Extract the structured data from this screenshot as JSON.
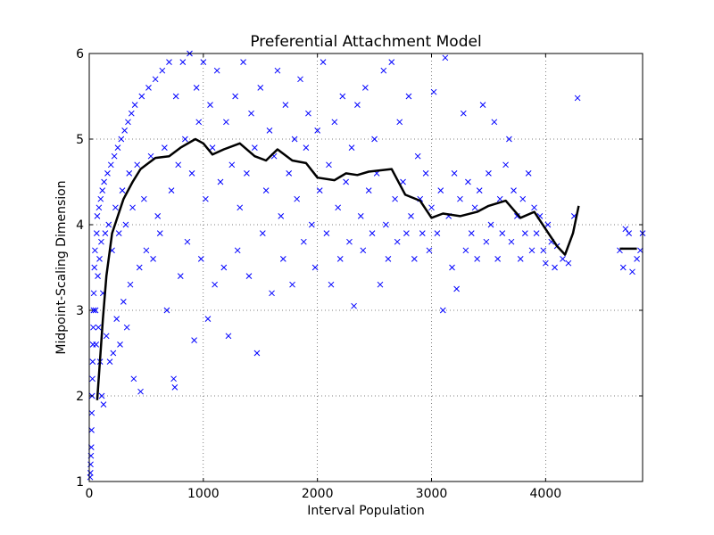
{
  "chart_data": {
    "type": "scatter",
    "title": "Preferential Attachment Model",
    "xlabel": "Interval Population",
    "ylabel": "Midpoint-Scaling Dimension",
    "xlim": [
      0,
      4850
    ],
    "ylim": [
      1,
      6
    ],
    "x_ticks": [
      0,
      1000,
      2000,
      3000,
      4000
    ],
    "x_tick_labels": [
      "0",
      "1000",
      "2000",
      "3000",
      "4000"
    ],
    "y_ticks": [
      1,
      2,
      3,
      4,
      5,
      6
    ],
    "y_tick_labels": [
      "1",
      "2",
      "3",
      "4",
      "5",
      "6"
    ],
    "grid": true,
    "grid_style": "dotted",
    "colors": {
      "scatter": "#0000ff",
      "line": "#000000",
      "frame": "#000000"
    },
    "series": [
      {
        "kind": "scatter",
        "marker": "x",
        "points": [
          [
            8,
            1.05
          ],
          [
            10,
            1.1
          ],
          [
            12,
            1.2
          ],
          [
            15,
            1.3
          ],
          [
            18,
            1.4
          ],
          [
            20,
            1.6
          ],
          [
            22,
            1.8
          ],
          [
            25,
            2.0
          ],
          [
            28,
            2.2
          ],
          [
            30,
            2.4
          ],
          [
            32,
            2.6
          ],
          [
            35,
            2.8
          ],
          [
            38,
            3.0
          ],
          [
            40,
            3.2
          ],
          [
            45,
            3.5
          ],
          [
            50,
            3.7
          ],
          [
            55,
            3.0
          ],
          [
            60,
            2.6
          ],
          [
            65,
            3.9
          ],
          [
            70,
            4.1
          ],
          [
            75,
            3.4
          ],
          [
            80,
            2.8
          ],
          [
            85,
            4.2
          ],
          [
            90,
            3.6
          ],
          [
            95,
            2.4
          ],
          [
            100,
            4.3
          ],
          [
            105,
            3.8
          ],
          [
            110,
            2.0
          ],
          [
            115,
            4.4
          ],
          [
            120,
            3.2
          ],
          [
            125,
            1.9
          ],
          [
            130,
            4.5
          ],
          [
            140,
            3.9
          ],
          [
            150,
            2.7
          ],
          [
            160,
            4.6
          ],
          [
            170,
            4.0
          ],
          [
            180,
            2.4
          ],
          [
            190,
            4.7
          ],
          [
            200,
            3.7
          ],
          [
            210,
            2.5
          ],
          [
            220,
            4.8
          ],
          [
            230,
            4.2
          ],
          [
            240,
            2.9
          ],
          [
            250,
            4.9
          ],
          [
            260,
            3.9
          ],
          [
            270,
            2.6
          ],
          [
            280,
            5.0
          ],
          [
            290,
            4.4
          ],
          [
            300,
            3.1
          ],
          [
            310,
            5.1
          ],
          [
            320,
            4.0
          ],
          [
            330,
            2.8
          ],
          [
            340,
            5.2
          ],
          [
            350,
            4.6
          ],
          [
            360,
            3.3
          ],
          [
            370,
            5.3
          ],
          [
            380,
            4.2
          ],
          [
            390,
            2.2
          ],
          [
            400,
            5.4
          ],
          [
            420,
            4.7
          ],
          [
            440,
            3.5
          ],
          [
            450,
            2.05
          ],
          [
            460,
            5.5
          ],
          [
            480,
            4.3
          ],
          [
            500,
            3.7
          ],
          [
            520,
            5.6
          ],
          [
            540,
            4.8
          ],
          [
            560,
            3.6
          ],
          [
            580,
            5.7
          ],
          [
            600,
            4.1
          ],
          [
            620,
            3.9
          ],
          [
            640,
            5.8
          ],
          [
            660,
            4.9
          ],
          [
            680,
            3.0
          ],
          [
            700,
            5.9
          ],
          [
            720,
            4.4
          ],
          [
            740,
            2.2
          ],
          [
            750,
            2.1
          ],
          [
            760,
            5.5
          ],
          [
            780,
            4.7
          ],
          [
            800,
            3.4
          ],
          [
            820,
            5.9
          ],
          [
            840,
            5.0
          ],
          [
            860,
            3.8
          ],
          [
            880,
            6.0
          ],
          [
            900,
            4.6
          ],
          [
            920,
            2.65
          ],
          [
            940,
            5.6
          ],
          [
            960,
            5.2
          ],
          [
            980,
            3.6
          ],
          [
            1000,
            5.9
          ],
          [
            1020,
            4.3
          ],
          [
            1040,
            2.9
          ],
          [
            1060,
            5.4
          ],
          [
            1080,
            4.9
          ],
          [
            1100,
            3.3
          ],
          [
            1120,
            5.8
          ],
          [
            1150,
            4.5
          ],
          [
            1180,
            3.5
          ],
          [
            1200,
            5.2
          ],
          [
            1220,
            2.7
          ],
          [
            1250,
            4.7
          ],
          [
            1280,
            5.5
          ],
          [
            1300,
            3.7
          ],
          [
            1320,
            4.2
          ],
          [
            1350,
            5.9
          ],
          [
            1380,
            4.6
          ],
          [
            1400,
            3.4
          ],
          [
            1420,
            5.3
          ],
          [
            1450,
            4.9
          ],
          [
            1470,
            2.5
          ],
          [
            1500,
            5.6
          ],
          [
            1520,
            3.9
          ],
          [
            1550,
            4.4
          ],
          [
            1580,
            5.1
          ],
          [
            1600,
            3.2
          ],
          [
            1620,
            4.8
          ],
          [
            1650,
            5.8
          ],
          [
            1680,
            4.1
          ],
          [
            1700,
            3.6
          ],
          [
            1720,
            5.4
          ],
          [
            1750,
            4.6
          ],
          [
            1780,
            3.3
          ],
          [
            1800,
            5.0
          ],
          [
            1820,
            4.3
          ],
          [
            1850,
            5.7
          ],
          [
            1880,
            3.8
          ],
          [
            1900,
            4.9
          ],
          [
            1920,
            5.3
          ],
          [
            1950,
            4.0
          ],
          [
            1980,
            3.5
          ],
          [
            2000,
            5.1
          ],
          [
            2020,
            4.4
          ],
          [
            2050,
            5.9
          ],
          [
            2080,
            3.9
          ],
          [
            2100,
            4.7
          ],
          [
            2120,
            3.3
          ],
          [
            2150,
            5.2
          ],
          [
            2180,
            4.2
          ],
          [
            2200,
            3.6
          ],
          [
            2220,
            5.5
          ],
          [
            2250,
            4.5
          ],
          [
            2280,
            3.8
          ],
          [
            2300,
            4.9
          ],
          [
            2320,
            3.05
          ],
          [
            2350,
            5.4
          ],
          [
            2380,
            4.1
          ],
          [
            2400,
            3.7
          ],
          [
            2420,
            5.6
          ],
          [
            2450,
            4.4
          ],
          [
            2480,
            3.9
          ],
          [
            2500,
            5.0
          ],
          [
            2520,
            4.6
          ],
          [
            2550,
            3.3
          ],
          [
            2580,
            5.8
          ],
          [
            2600,
            4.0
          ],
          [
            2620,
            3.6
          ],
          [
            2650,
            5.9
          ],
          [
            2680,
            4.3
          ],
          [
            2700,
            3.8
          ],
          [
            2720,
            5.2
          ],
          [
            2750,
            4.5
          ],
          [
            2780,
            3.9
          ],
          [
            2800,
            5.5
          ],
          [
            2820,
            4.1
          ],
          [
            2850,
            3.6
          ],
          [
            2880,
            4.8
          ],
          [
            2900,
            4.3
          ],
          [
            2920,
            3.9
          ],
          [
            2950,
            4.6
          ],
          [
            2980,
            3.7
          ],
          [
            3000,
            4.2
          ],
          [
            3020,
            5.55
          ],
          [
            3050,
            3.9
          ],
          [
            3080,
            4.4
          ],
          [
            3100,
            3.0
          ],
          [
            3120,
            5.95
          ],
          [
            3150,
            4.1
          ],
          [
            3180,
            3.5
          ],
          [
            3200,
            4.6
          ],
          [
            3220,
            3.25
          ],
          [
            3250,
            4.3
          ],
          [
            3280,
            5.3
          ],
          [
            3300,
            3.7
          ],
          [
            3320,
            4.5
          ],
          [
            3350,
            3.9
          ],
          [
            3380,
            4.2
          ],
          [
            3400,
            3.6
          ],
          [
            3420,
            4.4
          ],
          [
            3450,
            5.4
          ],
          [
            3480,
            3.8
          ],
          [
            3500,
            4.6
          ],
          [
            3520,
            4.0
          ],
          [
            3550,
            5.2
          ],
          [
            3580,
            3.6
          ],
          [
            3600,
            4.3
          ],
          [
            3620,
            3.9
          ],
          [
            3650,
            4.7
          ],
          [
            3680,
            5.0
          ],
          [
            3700,
            3.8
          ],
          [
            3720,
            4.4
          ],
          [
            3750,
            4.1
          ],
          [
            3780,
            3.6
          ],
          [
            3800,
            4.3
          ],
          [
            3820,
            3.9
          ],
          [
            3850,
            4.6
          ],
          [
            3880,
            3.7
          ],
          [
            3900,
            4.2
          ],
          [
            3920,
            3.9
          ],
          [
            3950,
            4.1
          ],
          [
            3980,
            3.7
          ],
          [
            4000,
            3.55
          ],
          [
            4020,
            4.0
          ],
          [
            4050,
            3.8
          ],
          [
            4080,
            3.5
          ],
          [
            4100,
            3.75
          ],
          [
            4150,
            3.6
          ],
          [
            4200,
            3.55
          ],
          [
            4250,
            4.1
          ],
          [
            4280,
            5.48
          ],
          [
            4650,
            3.7
          ],
          [
            4680,
            3.5
          ],
          [
            4700,
            3.95
          ],
          [
            4730,
            3.9
          ],
          [
            4760,
            3.45
          ],
          [
            4800,
            3.6
          ],
          [
            4830,
            3.7
          ],
          [
            4850,
            3.9
          ]
        ]
      },
      {
        "kind": "line",
        "segments": [
          [
            [
              70,
              1.95
            ],
            [
              120,
              2.9
            ],
            [
              150,
              3.4
            ],
            [
              200,
              3.9
            ],
            [
              250,
              4.1
            ],
            [
              300,
              4.3
            ],
            [
              380,
              4.5
            ],
            [
              450,
              4.65
            ],
            [
              500,
              4.7
            ],
            [
              580,
              4.78
            ],
            [
              700,
              4.8
            ],
            [
              800,
              4.9
            ],
            [
              930,
              5.0
            ],
            [
              1000,
              4.95
            ],
            [
              1080,
              4.82
            ],
            [
              1180,
              4.88
            ],
            [
              1320,
              4.95
            ],
            [
              1450,
              4.8
            ],
            [
              1550,
              4.75
            ],
            [
              1650,
              4.88
            ],
            [
              1780,
              4.75
            ],
            [
              1900,
              4.72
            ],
            [
              2000,
              4.55
            ],
            [
              2150,
              4.52
            ],
            [
              2250,
              4.6
            ],
            [
              2350,
              4.58
            ],
            [
              2450,
              4.62
            ],
            [
              2650,
              4.65
            ],
            [
              2770,
              4.35
            ],
            [
              2900,
              4.28
            ],
            [
              3000,
              4.08
            ],
            [
              3100,
              4.13
            ],
            [
              3250,
              4.1
            ],
            [
              3400,
              4.15
            ],
            [
              3500,
              4.22
            ],
            [
              3650,
              4.28
            ],
            [
              3780,
              4.08
            ],
            [
              3900,
              4.15
            ],
            [
              4000,
              3.95
            ],
            [
              4100,
              3.75
            ],
            [
              4170,
              3.65
            ],
            [
              4240,
              3.9
            ],
            [
              4290,
              4.22
            ]
          ],
          [
            [
              4650,
              3.72
            ],
            [
              4800,
              3.72
            ]
          ]
        ]
      }
    ]
  }
}
